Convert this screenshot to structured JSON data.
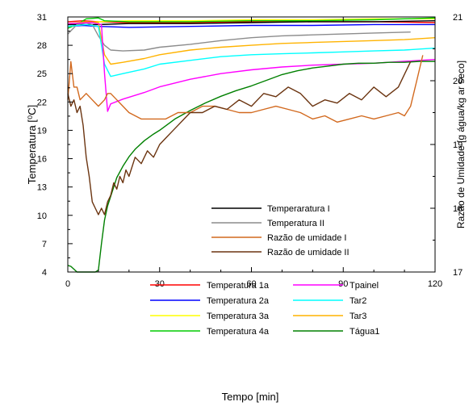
{
  "chart_data": {
    "type": "line",
    "xlabel": "Tempo [min]",
    "ylabel_left": "Temperatura [⁰C]",
    "ylabel_right": "Razão de Umidade [g água/kg ar seco]",
    "xlim": [
      0,
      120
    ],
    "ylim_left": [
      4,
      31
    ],
    "ylim_right": [
      17,
      21
    ],
    "x_ticks": [
      "0",
      "30",
      "60",
      "90",
      "120"
    ],
    "y_ticks_left": [
      "4",
      "7",
      "10",
      "13",
      "16",
      "19",
      "22",
      "25",
      "28",
      "31"
    ],
    "y_ticks_right": [
      "17",
      "18",
      "19",
      "20",
      "21"
    ],
    "grid": false,
    "legend_upper": [
      {
        "name": "Temperaratura I",
        "color": "#000000"
      },
      {
        "name": "Temperatura II",
        "color": "#8c8c8c"
      },
      {
        "name": "Razão de umidade I",
        "color": "#d2691e"
      },
      {
        "name": "Razão de umidade II",
        "color": "#6b3410"
      }
    ],
    "legend_lower": [
      {
        "name": "Temperatura 1a",
        "color": "#ff0000"
      },
      {
        "name": "Temperatura 2a",
        "color": "#0000ff"
      },
      {
        "name": "Temperatura 3a",
        "color": "#ffff00"
      },
      {
        "name": "Temperatura 4a",
        "color": "#00cc00"
      },
      {
        "name": "Tpainel",
        "color": "#ff00ff"
      },
      {
        "name": "Tar2",
        "color": "#00ffff"
      },
      {
        "name": "Tar3",
        "color": "#ffb300"
      },
      {
        "name": "Tágua1",
        "color": "#008000"
      }
    ],
    "series": [
      {
        "name": "Temperatura 1a",
        "axis": "left",
        "color": "#ff0000",
        "x": [
          0,
          5,
          10,
          20,
          40,
          60,
          80,
          100,
          120
        ],
        "y": [
          30.5,
          30.6,
          30.5,
          30.4,
          30.4,
          30.5,
          30.5,
          30.5,
          30.4
        ]
      },
      {
        "name": "Temperatura 2a",
        "axis": "left",
        "color": "#0000ff",
        "x": [
          0,
          5,
          10,
          20,
          40,
          60,
          80,
          100,
          120
        ],
        "y": [
          30.0,
          30.1,
          30.0,
          29.9,
          30.0,
          30.1,
          30.1,
          30.2,
          30.2
        ]
      },
      {
        "name": "Temperatura 3a",
        "axis": "left",
        "color": "#ffff00",
        "x": [
          0,
          5,
          10,
          20,
          40,
          60,
          80,
          100,
          120
        ],
        "y": [
          30.3,
          30.4,
          30.5,
          30.6,
          30.6,
          30.7,
          30.7,
          30.8,
          30.8
        ]
      },
      {
        "name": "Temperatura 4a",
        "axis": "left",
        "color": "#00cc00",
        "x": [
          0,
          3,
          6,
          10,
          12,
          20,
          40,
          60,
          80,
          100,
          120
        ],
        "y": [
          29.8,
          30.2,
          30.8,
          30.9,
          30.6,
          30.5,
          30.5,
          30.6,
          30.6,
          30.7,
          30.9
        ]
      },
      {
        "name": "Temperaratura I",
        "axis": "left",
        "color": "#000000",
        "x": [
          0,
          10,
          20,
          40,
          60,
          80,
          100,
          120
        ],
        "y": [
          30.2,
          30.2,
          30.3,
          30.3,
          30.4,
          30.5,
          30.5,
          30.6
        ]
      },
      {
        "name": "Temperatura II",
        "axis": "left",
        "color": "#8c8c8c",
        "x": [
          0,
          3,
          6,
          8,
          10,
          12,
          14,
          18,
          25,
          30,
          40,
          50,
          60,
          70,
          80,
          90,
          100,
          112
        ],
        "y": [
          29.2,
          30.2,
          30.4,
          30.2,
          29.0,
          28.0,
          27.5,
          27.4,
          27.5,
          27.8,
          28.1,
          28.5,
          28.8,
          29.0,
          29.1,
          29.2,
          29.3,
          29.4
        ]
      },
      {
        "name": "Tar3",
        "axis": "left",
        "color": "#ffb300",
        "x": [
          0,
          6,
          10,
          12,
          14,
          18,
          25,
          30,
          40,
          50,
          60,
          70,
          80,
          90,
          100,
          110,
          120
        ],
        "y": [
          30.3,
          30.5,
          30.4,
          27.0,
          26.0,
          26.2,
          26.6,
          27.0,
          27.5,
          27.8,
          28.0,
          28.2,
          28.3,
          28.4,
          28.5,
          28.6,
          28.8
        ]
      },
      {
        "name": "Tar2",
        "axis": "left",
        "color": "#00ffff",
        "x": [
          0,
          6,
          10,
          12,
          14,
          18,
          25,
          30,
          40,
          50,
          60,
          70,
          80,
          90,
          100,
          110,
          120
        ],
        "y": [
          30.0,
          30.2,
          30.0,
          26.0,
          24.7,
          25.0,
          25.5,
          26.0,
          26.4,
          26.8,
          27.0,
          27.1,
          27.2,
          27.3,
          27.4,
          27.5,
          27.7
        ]
      },
      {
        "name": "Tpainel",
        "axis": "left",
        "color": "#ff00ff",
        "x": [
          0,
          8,
          11,
          12,
          13,
          14,
          18,
          25,
          30,
          40,
          50,
          60,
          70,
          80,
          90,
          100,
          110,
          120
        ],
        "y": [
          30.3,
          30.4,
          30.2,
          25.0,
          21.0,
          21.8,
          22.3,
          23.0,
          23.6,
          24.4,
          25.0,
          25.4,
          25.7,
          25.9,
          26.0,
          26.1,
          26.3,
          26.5
        ]
      },
      {
        "name": "Tágua1",
        "axis": "left",
        "color": "#008000",
        "x": [
          0,
          1,
          2,
          3,
          4,
          5,
          6,
          7,
          8,
          9,
          10,
          11,
          12,
          13,
          14,
          15,
          16,
          18,
          20,
          22,
          25,
          28,
          30,
          35,
          40,
          45,
          50,
          55,
          60,
          65,
          70,
          75,
          80,
          85,
          90,
          95,
          100,
          105,
          110,
          115,
          120
        ],
        "y": [
          4.7,
          4.6,
          4.3,
          4.0,
          4.0,
          4.0,
          4.0,
          4.0,
          4.0,
          4.0,
          4.2,
          7.0,
          9.5,
          11.0,
          12.0,
          13.0,
          14.0,
          15.2,
          16.2,
          17.0,
          17.9,
          18.6,
          19.0,
          20.2,
          21.1,
          21.9,
          22.6,
          23.2,
          23.7,
          24.3,
          24.9,
          25.3,
          25.6,
          25.8,
          26.0,
          26.1,
          26.1,
          26.2,
          26.2,
          26.3,
          26.3
        ]
      },
      {
        "name": "Razão de umidade I",
        "axis": "right",
        "color": "#d2691e",
        "x": [
          0,
          1,
          2,
          3,
          4,
          6,
          8,
          10,
          12,
          13,
          14,
          16,
          18,
          20,
          24,
          28,
          32,
          36,
          40,
          44,
          48,
          52,
          56,
          60,
          64,
          68,
          72,
          76,
          80,
          84,
          88,
          92,
          96,
          100,
          104,
          108,
          110,
          112,
          114,
          116
        ],
        "y": [
          19.7,
          20.3,
          19.9,
          19.9,
          19.7,
          19.8,
          19.7,
          19.6,
          19.7,
          19.8,
          19.8,
          19.7,
          19.6,
          19.5,
          19.4,
          19.4,
          19.4,
          19.5,
          19.5,
          19.6,
          19.6,
          19.55,
          19.5,
          19.5,
          19.55,
          19.6,
          19.55,
          19.5,
          19.4,
          19.45,
          19.35,
          19.4,
          19.45,
          19.4,
          19.45,
          19.5,
          19.45,
          19.6,
          20.0,
          20.4
        ]
      },
      {
        "name": "Razão de umidade II",
        "axis": "right",
        "color": "#6b3410",
        "x": [
          0,
          1,
          2,
          3,
          4,
          5,
          6,
          7,
          8,
          9,
          10,
          11,
          12,
          13,
          14,
          15,
          16,
          17,
          18,
          19,
          20,
          22,
          24,
          26,
          28,
          30,
          32,
          34,
          36,
          38,
          40,
          44,
          48,
          52,
          56,
          60,
          64,
          68,
          72,
          76,
          80,
          84,
          88,
          92,
          96,
          100,
          104,
          108,
          110,
          112
        ],
        "y": [
          19.8,
          19.6,
          19.7,
          19.5,
          19.6,
          19.3,
          18.8,
          18.5,
          18.1,
          18.0,
          17.9,
          18.0,
          17.9,
          18.1,
          18.2,
          18.4,
          18.3,
          18.5,
          18.4,
          18.6,
          18.5,
          18.8,
          18.7,
          18.9,
          18.8,
          19.0,
          19.1,
          19.2,
          19.3,
          19.4,
          19.5,
          19.5,
          19.6,
          19.55,
          19.7,
          19.6,
          19.8,
          19.75,
          19.9,
          19.8,
          19.6,
          19.7,
          19.65,
          19.8,
          19.7,
          19.9,
          19.75,
          19.9,
          20.1,
          20.3
        ]
      }
    ]
  }
}
